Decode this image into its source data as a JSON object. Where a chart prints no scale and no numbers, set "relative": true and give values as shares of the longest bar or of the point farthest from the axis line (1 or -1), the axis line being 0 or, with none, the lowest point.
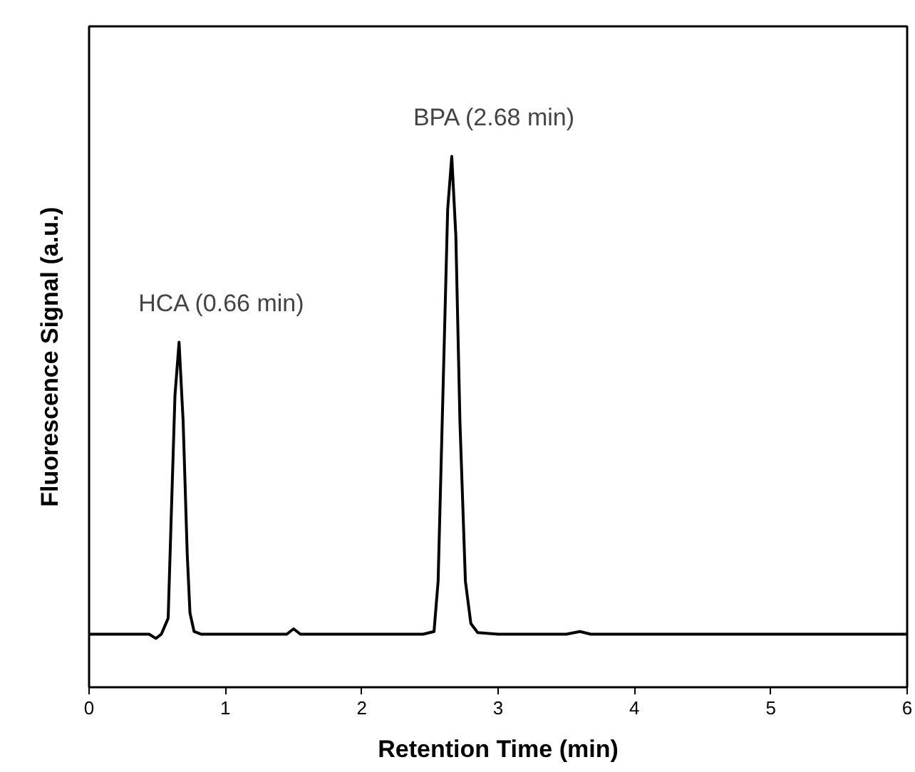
{
  "chart_data": {
    "type": "line",
    "relative": true,
    "xlabel": "Retention Time (min)",
    "ylabel": "Fluorescence Signal (a.u.)",
    "xlim": [
      0,
      6
    ],
    "xticks": [
      0,
      1,
      2,
      3,
      4,
      5,
      6
    ],
    "grid": false,
    "marker": "none",
    "line_style": "solid",
    "x": [
      0,
      0.3,
      0.44,
      0.49,
      0.53,
      0.58,
      0.6,
      0.63,
      0.66,
      0.69,
      0.72,
      0.74,
      0.77,
      0.82,
      1.0,
      1.45,
      1.5,
      1.55,
      2.0,
      2.45,
      2.53,
      2.56,
      2.6,
      2.63,
      2.66,
      2.69,
      2.72,
      2.76,
      2.8,
      2.85,
      3.0,
      3.5,
      3.6,
      3.68,
      4.5,
      6.0
    ],
    "series": [
      {
        "color": "#000000",
        "values": [
          0.1,
          0.1,
          0.1,
          0.092,
          0.1,
          0.13,
          0.3,
          0.55,
          0.65,
          0.5,
          0.25,
          0.14,
          0.105,
          0.1,
          0.1,
          0.1,
          0.11,
          0.1,
          0.1,
          0.1,
          0.105,
          0.2,
          0.6,
          0.9,
          1.0,
          0.85,
          0.5,
          0.2,
          0.12,
          0.103,
          0.1,
          0.1,
          0.105,
          0.1,
          0.1,
          0.1
        ]
      }
    ],
    "annotations": [
      {
        "text": "HCA (0.66 min)",
        "x": 0.66,
        "y": 0.65
      },
      {
        "text": "BPA (2.68 min)",
        "x": 2.66,
        "y": 1.0
      }
    ]
  }
}
